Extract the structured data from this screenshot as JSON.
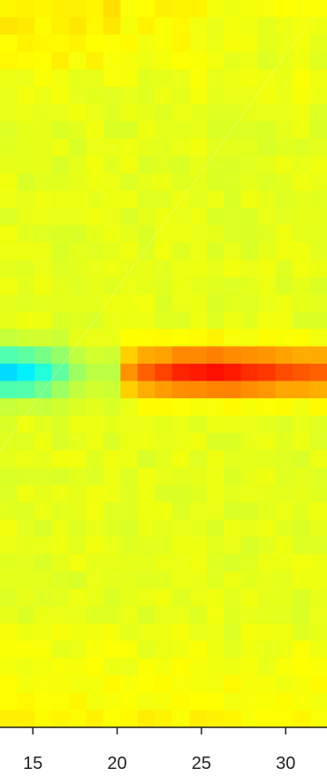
{
  "chart_data": {
    "type": "heatmap",
    "title": "",
    "xlabel": "",
    "ylabel": "",
    "x_ticks": [
      15,
      20,
      25,
      30
    ],
    "x_tick_labels": [
      "15",
      "20",
      "25",
      "30"
    ],
    "xlim": [
      13.05,
      32.45
    ],
    "rows": 42,
    "cols": 19,
    "value_range": [
      0,
      1
    ],
    "colormap": "jet",
    "colors": {
      "background_green": "#a8ff00",
      "cold_spot": "#00e5ff",
      "hot_spot": "#ff6a00",
      "axis": "#1f1f1f"
    },
    "hot_band": {
      "row": 21,
      "values": [
        0.42,
        0.42,
        0.45,
        0.5,
        0.57,
        0.63,
        0.65,
        0.73,
        0.78,
        0.81,
        0.84,
        0.85,
        0.86,
        0.85,
        0.83,
        0.82,
        0.8,
        0.79,
        0.78
      ]
    },
    "cold_band": {
      "row": 21,
      "values": [
        0.34,
        0.36,
        0.41,
        0.47,
        0.53,
        0.56,
        0.56
      ]
    },
    "background_value": 0.6,
    "dim_line": true
  }
}
